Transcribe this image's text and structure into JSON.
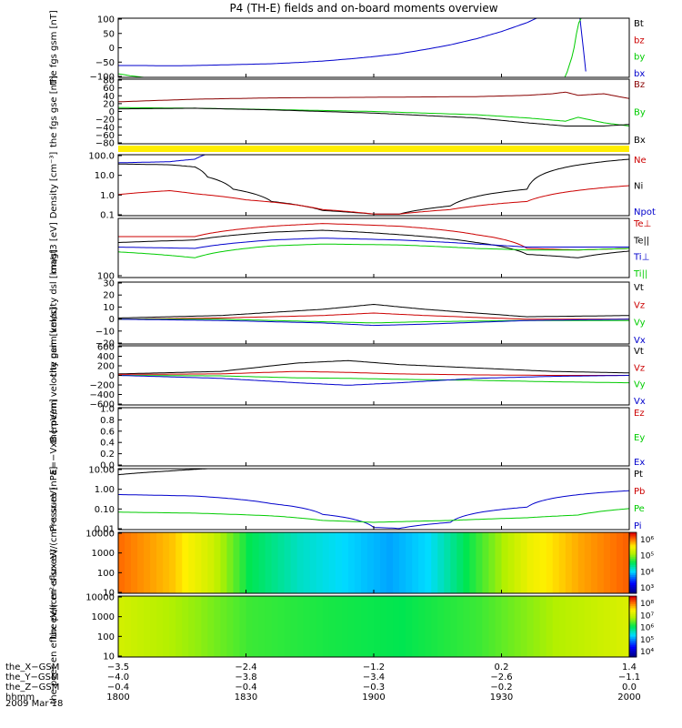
{
  "title": "P4 (TH-E) fields and on-board moments overview",
  "date_label": "2009 Mar 18",
  "colorbar_labels": {
    "ion": [
      "10⁶",
      "10⁵",
      "10⁴",
      "10³"
    ],
    "electron": [
      "10⁸",
      "10⁷",
      "10⁶",
      "10⁵",
      "10⁴"
    ]
  },
  "ephemeris": {
    "rows": [
      {
        "label": "the_X−GSM",
        "values": [
          "−3.5",
          "−2.4",
          "−1.2",
          "0.2",
          "1.4"
        ]
      },
      {
        "label": "the_Y−GSM",
        "values": [
          "−4.0",
          "−3.8",
          "−3.4",
          "−2.6",
          "−1.1"
        ]
      },
      {
        "label": "the_Z−GSM",
        "values": [
          "−0.4",
          "−0.4",
          "−0.3",
          "−0.2",
          "0.0"
        ]
      },
      {
        "label": "hhmm",
        "values": [
          "1800",
          "1830",
          "1900",
          "1930",
          "2000"
        ]
      }
    ]
  },
  "colors": {
    "black": "#000000",
    "red": "#cc0000",
    "green": "#00cc00",
    "blue": "#0000cc",
    "darkred": "#880000",
    "yellow": "#ffee00"
  },
  "chart_data": [
    {
      "type": "line",
      "ylabel": "the fgs gsm [nT]",
      "ylim": [
        -100,
        100
      ],
      "yticks": [
        "100",
        "50",
        "0",
        "−50",
        "−100"
      ],
      "legend": [
        {
          "label": "Bt",
          "color": "#000000"
        },
        {
          "label": "bz",
          "color": "#cc0000"
        },
        {
          "label": "by",
          "color": "#00cc00"
        },
        {
          "label": "bx",
          "color": "#0000cc"
        }
      ],
      "series": [
        {
          "name": "bx",
          "color": "#0000cc",
          "x": [
            1800,
            1810,
            1820,
            1830,
            1840,
            1850,
            1860,
            1870,
            1880,
            1890,
            1900,
            1910,
            1920,
            1930,
            1940,
            1950,
            1960,
            1970,
            1975,
            1980,
            1983
          ],
          "y": [
            -60,
            -60,
            -61,
            -60,
            -58,
            -56,
            -54,
            -50,
            -45,
            -38,
            -30,
            -20,
            -6,
            10,
            30,
            55,
            85,
            125,
            150,
            155,
            -80
          ]
        },
        {
          "name": "by",
          "color": "#00cc00",
          "x": [
            1800,
            1805,
            1810,
            1975,
            1978,
            1980,
            1983
          ],
          "y": [
            -88,
            -95,
            -100,
            -100,
            -20,
            80,
            130
          ]
        }
      ]
    },
    {
      "type": "line",
      "ylabel": "the fgs gse [nT]",
      "ylim": [
        -100,
        100
      ],
      "yticks": [
        "80",
        "60",
        "40",
        "20",
        "0",
        "−20",
        "−40",
        "−60",
        "−80"
      ],
      "legend": [
        {
          "label": "Bz",
          "color": "#880000"
        },
        {
          "label": "By",
          "color": "#00cc00"
        },
        {
          "label": "Bx",
          "color": "#000000"
        }
      ],
      "series": [
        {
          "name": "Bz",
          "color": "#880000",
          "x": [
            1800,
            1830,
            1860,
            1900,
            1940,
            1960,
            1970,
            1975,
            1980,
            1990,
            2000
          ],
          "y": [
            30,
            38,
            42,
            44,
            46,
            50,
            55,
            60,
            50,
            55,
            40
          ]
        },
        {
          "name": "By",
          "color": "#00cc00",
          "x": [
            1800,
            1830,
            1860,
            1900,
            1940,
            1960,
            1975,
            1980,
            1990,
            2000
          ],
          "y": [
            12,
            10,
            6,
            0,
            -10,
            -20,
            -30,
            -18,
            -35,
            -45
          ]
        },
        {
          "name": "Bx",
          "color": "#000000",
          "x": [
            1800,
            1830,
            1860,
            1900,
            1940,
            1960,
            1975,
            1990,
            2000
          ],
          "y": [
            8,
            10,
            5,
            -5,
            -20,
            -35,
            -45,
            -45,
            -40
          ]
        }
      ]
    },
    {
      "type": "line",
      "ylabel": "Density [cm⁻³]",
      "scale": "log",
      "ylim": [
        0.1,
        100
      ],
      "yticks": [
        "100.0",
        "10.0",
        "1.0",
        "0.1"
      ],
      "legend": [
        {
          "label": "Ne",
          "color": "#cc0000"
        },
        {
          "label": "Ni",
          "color": "#000000"
        },
        {
          "label": "Npot",
          "color": "#0000cc"
        }
      ],
      "series": [
        {
          "name": "Ni",
          "color": "#000000",
          "x": [
            1800,
            1820,
            1830,
            1835,
            1845,
            1860,
            1880,
            1900,
            1910,
            1930,
            1960,
            2000
          ],
          "y": [
            35,
            32,
            25,
            8,
            2,
            0.5,
            0.18,
            0.12,
            0.12,
            0.3,
            2,
            60
          ]
        },
        {
          "name": "Ne",
          "color": "#cc0000",
          "x": [
            1800,
            1820,
            1830,
            1850,
            1880,
            1900,
            1910,
            1930,
            1960,
            2000
          ],
          "y": [
            1.1,
            1.7,
            1.2,
            0.6,
            0.2,
            0.12,
            0.12,
            0.2,
            0.5,
            3
          ]
        },
        {
          "name": "Npot",
          "color": "#0000cc",
          "x": [
            1800,
            1820,
            1830,
            1834
          ],
          "y": [
            40,
            45,
            60,
            100
          ]
        }
      ]
    },
    {
      "type": "line",
      "ylabel": "magt3 [eV]",
      "scale": "log",
      "ylim": [
        100,
        100000
      ],
      "yticks": [
        "100"
      ],
      "legend": [
        {
          "label": "Te⊥",
          "color": "#cc0000"
        },
        {
          "label": "Te||",
          "color": "#000000"
        },
        {
          "label": "Ti⊥",
          "color": "#0000cc"
        },
        {
          "label": "Ti||",
          "color": "#00cc00"
        }
      ],
      "series": [
        {
          "name": "Te⊥",
          "color": "#cc0000",
          "x": [
            1800,
            1830,
            1860,
            1880,
            1910,
            1940,
            1960,
            1980,
            2000
          ],
          "y": [
            12000,
            12000,
            40000,
            55000,
            40000,
            15000,
            3000,
            2500,
            3000
          ]
        },
        {
          "name": "Te||",
          "color": "#000000",
          "x": [
            1800,
            1830,
            1860,
            1880,
            1910,
            1940,
            1960,
            1980,
            2000
          ],
          "y": [
            6000,
            8000,
            20000,
            25000,
            15000,
            6000,
            1500,
            1000,
            2200
          ]
        },
        {
          "name": "Ti⊥",
          "color": "#0000cc",
          "x": [
            1800,
            1830,
            1860,
            1880,
            1910,
            1940,
            1960,
            1980,
            2000
          ],
          "y": [
            3500,
            3000,
            8000,
            10000,
            8000,
            5000,
            3500,
            3500,
            3500
          ]
        },
        {
          "name": "Ti||",
          "color": "#00cc00",
          "x": [
            1800,
            1830,
            1860,
            1880,
            1910,
            1940,
            1960,
            1980,
            2000
          ],
          "y": [
            2000,
            1000,
            4000,
            5000,
            4500,
            3000,
            2500,
            2500,
            3000
          ]
        }
      ]
    },
    {
      "type": "line",
      "ylabel": "the peim velocity dsl [km/s]",
      "ylim": [
        -20,
        30
      ],
      "yticks": [
        "30",
        "20",
        "10",
        "0",
        "−10",
        "−20"
      ],
      "legend": [
        {
          "label": "Vt",
          "color": "#000000"
        },
        {
          "label": "Vz",
          "color": "#cc0000"
        },
        {
          "label": "Vy",
          "color": "#00cc00"
        },
        {
          "label": "Vx",
          "color": "#0000cc"
        }
      ],
      "series": [
        {
          "name": "Vt",
          "color": "#000000",
          "x": [
            1800,
            1840,
            1880,
            1900,
            1920,
            1960,
            2000
          ],
          "y": [
            1,
            3,
            8,
            12,
            8,
            2,
            3
          ]
        },
        {
          "name": "Vz",
          "color": "#cc0000",
          "x": [
            1800,
            1840,
            1880,
            1900,
            1920,
            1960,
            2000
          ],
          "y": [
            0,
            1,
            3,
            5,
            3,
            0,
            0
          ]
        },
        {
          "name": "Vy",
          "color": "#00cc00",
          "x": [
            1800,
            1840,
            1880,
            1900,
            1920,
            1960,
            2000
          ],
          "y": [
            0,
            0,
            -2,
            -3,
            -2,
            -1,
            -1
          ]
        },
        {
          "name": "Vx",
          "color": "#0000cc",
          "x": [
            1800,
            1840,
            1880,
            1900,
            1920,
            1960,
            2000
          ],
          "y": [
            0,
            -1,
            -3,
            -5,
            -4,
            -1,
            0
          ]
        }
      ]
    },
    {
      "type": "line",
      "ylabel": "the peem velocity gsm [km/s]",
      "ylim": [
        -600,
        600
      ],
      "yticks": [
        "600",
        "400",
        "200",
        "0",
        "−200",
        "−400",
        "−600"
      ],
      "legend": [
        {
          "label": "Vt",
          "color": "#000000"
        },
        {
          "label": "Vz",
          "color": "#cc0000"
        },
        {
          "label": "Vy",
          "color": "#00cc00"
        },
        {
          "label": "Vx",
          "color": "#0000cc"
        }
      ],
      "series": [
        {
          "name": "Vt",
          "color": "#000000",
          "x": [
            1800,
            1840,
            1870,
            1890,
            1910,
            1940,
            1970,
            2000
          ],
          "y": [
            30,
            80,
            250,
            300,
            220,
            150,
            80,
            50
          ]
        },
        {
          "name": "Vz",
          "color": "#cc0000",
          "x": [
            1800,
            1840,
            1870,
            1890,
            1910,
            1940,
            1970,
            2000
          ],
          "y": [
            20,
            30,
            80,
            60,
            30,
            10,
            0,
            0
          ]
        },
        {
          "name": "Vy",
          "color": "#00cc00",
          "x": [
            1800,
            1840,
            1870,
            1890,
            1910,
            1940,
            1970,
            2000
          ],
          "y": [
            0,
            -10,
            -50,
            -60,
            -80,
            -100,
            -130,
            -150
          ]
        },
        {
          "name": "Vx",
          "color": "#0000cc",
          "x": [
            1800,
            1840,
            1870,
            1890,
            1910,
            1940,
            1970,
            2000
          ],
          "y": [
            0,
            -60,
            -150,
            -200,
            -150,
            -60,
            -20,
            0
          ]
        }
      ]
    },
    {
      "type": "line",
      "ylabel": "E=−VxB [mV/m]",
      "ylim": [
        0,
        1
      ],
      "yticks": [
        "1.0",
        "0.8",
        "0.6",
        "0.4",
        "0.2",
        "0.0"
      ],
      "legend": [
        {
          "label": "Ez",
          "color": "#cc0000"
        },
        {
          "label": "Ey",
          "color": "#00cc00"
        },
        {
          "label": "Ex",
          "color": "#0000cc"
        }
      ],
      "series": []
    },
    {
      "type": "line",
      "ylabel": "Pressure [nPa]",
      "scale": "log",
      "ylim": [
        0.005,
        50
      ],
      "yticks": [
        "10.00",
        "1.00",
        "0.10",
        "0.01"
      ],
      "legend": [
        {
          "label": "Pt",
          "color": "#000000"
        },
        {
          "label": "Pb",
          "color": "#cc0000"
        },
        {
          "label": "Pe",
          "color": "#00cc00"
        },
        {
          "label": "Pi",
          "color": "#0000cc"
        }
      ],
      "series": [
        {
          "name": "Pt",
          "color": "#000000",
          "x": [
            1800,
            1820,
            1830,
            1835
          ],
          "y": [
            20,
            35,
            45,
            50
          ]
        },
        {
          "name": "Pi",
          "color": "#0000cc",
          "x": [
            1800,
            1830,
            1860,
            1880,
            1900,
            1910,
            1930,
            1960,
            2000
          ],
          "y": [
            1,
            0.8,
            0.25,
            0.05,
            0.007,
            0.006,
            0.015,
            0.15,
            1.8
          ]
        },
        {
          "name": "Pe",
          "color": "#00cc00",
          "x": [
            1800,
            1830,
            1860,
            1880,
            1900,
            1930,
            1960,
            1980,
            2000
          ],
          "y": [
            0.07,
            0.06,
            0.04,
            0.02,
            0.015,
            0.02,
            0.03,
            0.045,
            0.12
          ]
        }
      ]
    },
    {
      "type": "heatmap",
      "ylabel": "the peir en eflux eV/(cm²-s-sr-eV)",
      "scale": "log",
      "ylim": [
        10,
        20000
      ],
      "yticks": [
        "10000",
        "1000",
        "100",
        "10"
      ],
      "columns": [
        {
          "t": 1800,
          "v": 0.9
        },
        {
          "t": 1820,
          "v": 0.82
        },
        {
          "t": 1835,
          "v": 0.7
        },
        {
          "t": 1850,
          "v": 0.5
        },
        {
          "t": 1870,
          "v": 0.4
        },
        {
          "t": 1890,
          "v": 0.34
        },
        {
          "t": 1905,
          "v": 0.3
        },
        {
          "t": 1920,
          "v": 0.35
        },
        {
          "t": 1940,
          "v": 0.55
        },
        {
          "t": 1960,
          "v": 0.75
        },
        {
          "t": 1980,
          "v": 0.85
        },
        {
          "t": 2000,
          "v": 0.92
        }
      ]
    },
    {
      "type": "heatmap",
      "ylabel": "the peer en eflux eV/(cm²-s-sr-eV)",
      "scale": "log",
      "ylim": [
        5,
        20000
      ],
      "yticks": [
        "10000",
        "1000",
        "100",
        "10"
      ],
      "columns": [
        {
          "t": 1800,
          "v": 0.7
        },
        {
          "t": 1830,
          "v": 0.62
        },
        {
          "t": 1850,
          "v": 0.55
        },
        {
          "t": 1880,
          "v": 0.52
        },
        {
          "t": 1910,
          "v": 0.5
        },
        {
          "t": 1940,
          "v": 0.55
        },
        {
          "t": 1970,
          "v": 0.65
        },
        {
          "t": 2000,
          "v": 0.72
        }
      ]
    }
  ]
}
